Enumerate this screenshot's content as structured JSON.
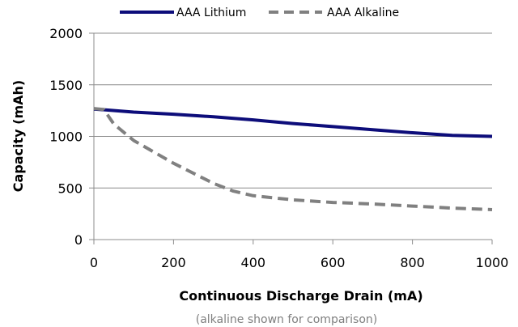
{
  "chart_data": {
    "type": "line",
    "title": "",
    "xlabel": "Continuous Discharge Drain (mA)",
    "ylabel": "Capacity (mAh)",
    "note": "(alkaline shown for comparison)",
    "xlim": [
      0,
      1000
    ],
    "ylim": [
      0,
      2000
    ],
    "xticks": [
      0,
      200,
      400,
      600,
      800,
      1000
    ],
    "yticks": [
      0,
      500,
      1000,
      1500,
      2000
    ],
    "xtick_labels": [
      "0",
      "200",
      "400",
      "600",
      "800",
      "1000"
    ],
    "ytick_labels": [
      "0",
      "500",
      "1000",
      "1500",
      "2000"
    ],
    "grid": "horizontal",
    "legend_position": "top",
    "series": [
      {
        "name": "AAA Lithium",
        "style": "solid",
        "color": "#0d0d7a",
        "points": [
          [
            0,
            1265
          ],
          [
            100,
            1235
          ],
          [
            200,
            1215
          ],
          [
            300,
            1190
          ],
          [
            400,
            1160
          ],
          [
            500,
            1125
          ],
          [
            600,
            1095
          ],
          [
            700,
            1065
          ],
          [
            800,
            1035
          ],
          [
            900,
            1010
          ],
          [
            1000,
            1000
          ]
        ]
      },
      {
        "name": "AAA Alkaline",
        "style": "dashed",
        "color": "#808080",
        "points": [
          [
            0,
            1270
          ],
          [
            25,
            1260
          ],
          [
            50,
            1120
          ],
          [
            100,
            960
          ],
          [
            200,
            740
          ],
          [
            300,
            545
          ],
          [
            350,
            470
          ],
          [
            400,
            425
          ],
          [
            500,
            385
          ],
          [
            600,
            360
          ],
          [
            700,
            345
          ],
          [
            800,
            325
          ],
          [
            900,
            305
          ],
          [
            1000,
            290
          ]
        ]
      }
    ]
  }
}
